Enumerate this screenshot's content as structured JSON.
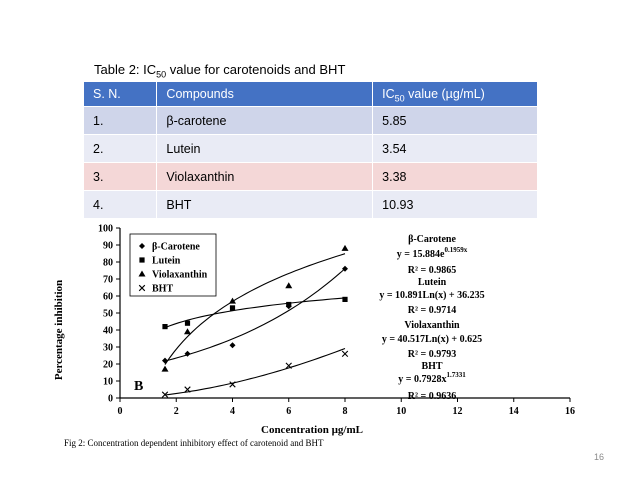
{
  "caption": {
    "prefix": "Table 2: IC",
    "sub": "50",
    "suffix": " value for carotenoids and BHT"
  },
  "table": {
    "headers": {
      "sn": "S. N.",
      "compounds": "Compounds",
      "ic_prefix": "IC",
      "ic_sub": "50",
      "ic_suffix": " value (µg/mL)"
    },
    "rows": [
      {
        "sn": "1.",
        "compound": "β-carotene",
        "value": "5.85"
      },
      {
        "sn": "2.",
        "compound": "Lutein",
        "value": "3.54"
      },
      {
        "sn": "3.",
        "compound": "Violaxanthin",
        "value": "3.38"
      },
      {
        "sn": "4.",
        "compound": "BHT",
        "value": "10.93"
      }
    ]
  },
  "figure_caption": "Fig 2:  Concentration dependent inhibitory effect of carotenoid and BHT",
  "page_number": "16",
  "chart_data": {
    "type": "scatter",
    "panel_label": "B",
    "xlabel": "Concentration µg/mL",
    "ylabel": "Percentage inhibition",
    "xlim": [
      0,
      16
    ],
    "ylim": [
      0,
      100
    ],
    "xticks": [
      "0",
      "2",
      "4",
      "6",
      "8",
      "10",
      "12",
      "14",
      "16"
    ],
    "yticks": [
      "0",
      "10",
      "20",
      "30",
      "40",
      "50",
      "60",
      "70",
      "80",
      "90",
      "100"
    ],
    "grid": false,
    "legend_position": "top-left",
    "series": [
      {
        "name": "β-Carotene",
        "marker": "diamond",
        "x": [
          1.6,
          2.4,
          4,
          6,
          8
        ],
        "y": [
          22,
          26,
          31,
          54,
          76
        ]
      },
      {
        "name": "Lutein",
        "marker": "square",
        "x": [
          1.6,
          2.4,
          4,
          6,
          8
        ],
        "y": [
          42,
          44,
          53,
          55,
          58
        ]
      },
      {
        "name": "Violaxanthin",
        "marker": "triangle",
        "x": [
          1.6,
          2.4,
          4,
          6,
          8
        ],
        "y": [
          17,
          39,
          57,
          66,
          88
        ]
      },
      {
        "name": "BHT",
        "marker": "x",
        "x": [
          1.6,
          2.4,
          4,
          6,
          8
        ],
        "y": [
          2,
          5,
          8,
          19,
          26
        ]
      }
    ],
    "equations": [
      {
        "name": "β-Carotene",
        "equation": "y = 15.884e",
        "exponent": "0.1959x",
        "r2": "R² = 0.9865"
      },
      {
        "name": "Lutein",
        "equation": "y = 10.891Ln(x) + 36.235",
        "exponent": "",
        "r2": "R² = 0.9714"
      },
      {
        "name": "Violaxanthin",
        "equation": "y = 40.517Ln(x) + 0.625",
        "exponent": "",
        "r2": "R² = 0.9793"
      },
      {
        "name": "BHT",
        "equation": "y = 0.7928x",
        "exponent": "1.7331",
        "r2": "R² = 0.9636"
      }
    ]
  }
}
